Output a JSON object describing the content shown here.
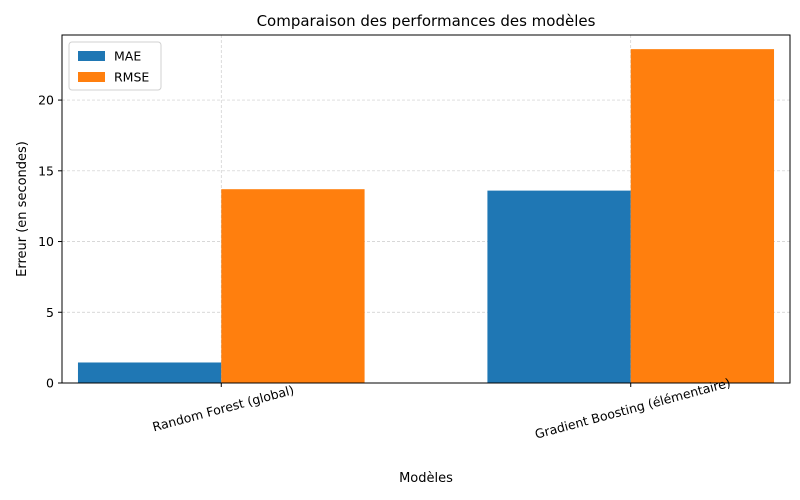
{
  "chart_data": {
    "type": "bar",
    "title": "Comparaison des performances des modèles",
    "xlabel": "Modèles",
    "ylabel": "Erreur (en secondes)",
    "categories": [
      "Random Forest (global)",
      "Gradient Boosting (élémentaire)"
    ],
    "series": [
      {
        "name": "MAE",
        "values": [
          1.45,
          13.6
        ],
        "color": "#1f77b4"
      },
      {
        "name": "RMSE",
        "values": [
          13.7,
          23.6
        ],
        "color": "#ff7f0e"
      }
    ],
    "ylim": [
      0,
      24.6
    ],
    "yticks": [
      0,
      5,
      10,
      15,
      20
    ],
    "grid": true,
    "legend_position": "top-left",
    "xtick_rotation": 15
  }
}
